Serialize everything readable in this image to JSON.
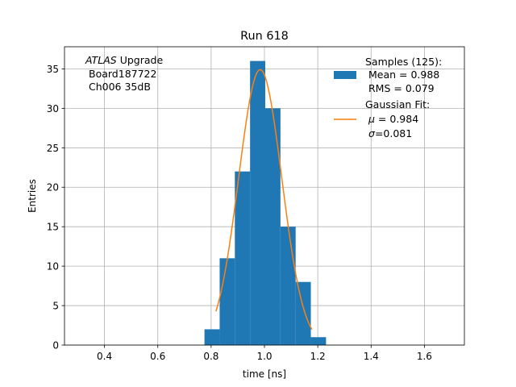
{
  "chart_data": {
    "type": "bar",
    "title": "Run 618",
    "xlabel": "time [ns]",
    "ylabel": "Entries",
    "xlim": [
      0.25,
      1.75
    ],
    "ylim": [
      0,
      37.8
    ],
    "grid": true,
    "x_ticks": [
      0.4,
      0.6,
      0.8,
      1.0,
      1.2,
      1.4,
      1.6
    ],
    "x_tick_labels": [
      "0.4",
      "0.6",
      "0.8",
      "1.0",
      "1.2",
      "1.4",
      "1.6"
    ],
    "y_ticks": [
      0,
      5,
      10,
      15,
      20,
      25,
      30,
      35
    ],
    "y_tick_labels": [
      "0",
      "5",
      "10",
      "15",
      "20",
      "25",
      "30",
      "35"
    ],
    "histogram": {
      "bin_edges": [
        0.775,
        0.832,
        0.889,
        0.946,
        1.003,
        1.06,
        1.117,
        1.174,
        1.231
      ],
      "values": [
        2,
        11,
        22,
        36,
        30,
        15,
        8,
        1
      ],
      "color": "#1f77b4"
    },
    "fit": {
      "name": "Gaussian Fit",
      "mu": 0.984,
      "sigma": 0.081,
      "amplitude": 34.9,
      "x_range": [
        0.818,
        1.178
      ],
      "color": "#ff7f0e"
    },
    "annotation": {
      "experiment": "ATLAS",
      "experiment_suffix": " Upgrade",
      "line2": "Board187722",
      "line3": "Ch006 35dB"
    },
    "legend": {
      "placement": "top-right",
      "samples_header": "Samples (125):",
      "mean_text": "Mean = 0.988",
      "rms_text": "RMS = 0.079",
      "fit_header": "Gaussian Fit:",
      "mu_symbol": "μ",
      "mu_text": " = 0.984",
      "sigma_symbol": "σ",
      "sigma_text": "=0.081"
    }
  }
}
